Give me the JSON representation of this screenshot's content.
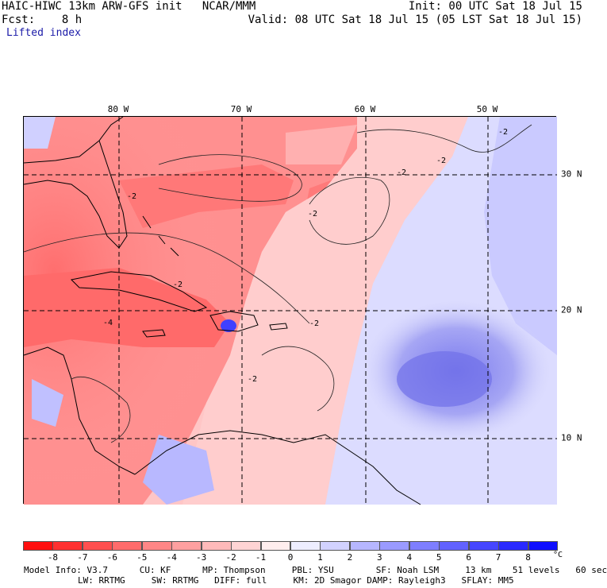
{
  "header": {
    "left_line1": "HAIC-HIWC 13km ARW-GFS init   NCAR/MMM",
    "left_line2": "Fcst:    8 h",
    "right_line1": "Init: 00 UTC Sat 18 Jul 15",
    "right_line2": "Valid: 08 UTC Sat 18 Jul 15 (05 LST Sat 18 Jul 15)",
    "field_name": "Lifted index"
  },
  "map": {
    "lon_labels": [
      "80 W",
      "70 W",
      "60 W",
      "50 W"
    ],
    "lat_labels": [
      "30 N",
      "20 N",
      "10 N"
    ],
    "contour_labels": [
      "-2",
      "-2",
      "-2",
      "-2",
      "-2",
      "-4",
      "-2",
      "-2",
      "-2"
    ]
  },
  "colorbar": {
    "tick_labels": [
      "-8",
      "-7",
      "-6",
      "-5",
      "-4",
      "-3",
      "-2",
      "-1",
      "0",
      "1",
      "2",
      "3",
      "4",
      "5",
      "6",
      "7",
      "8"
    ],
    "unit": "°C",
    "colors": [
      "#ff0f0f",
      "#ff3030",
      "#ff4f4f",
      "#ff6b6b",
      "#ff8686",
      "#ffa0a0",
      "#ffbaba",
      "#ffd4d4",
      "#ffeeee",
      "#eeeeff",
      "#d2d2ff",
      "#b6b6ff",
      "#9a9aff",
      "#7e7eff",
      "#6262ff",
      "#4646ff",
      "#2a2aff",
      "#0e0eff"
    ]
  },
  "model_info": {
    "line1": "Model Info: V3.7      CU: KF      MP: Thompson     PBL: YSU        SF: Noah LSM     13 km    51 levels   60 sec",
    "line2": "LW: RRTMG     SW: RRTMG   DIFF: full     KM: 2D Smagor DAMP: Rayleigh3   SFLAY: MM5"
  }
}
